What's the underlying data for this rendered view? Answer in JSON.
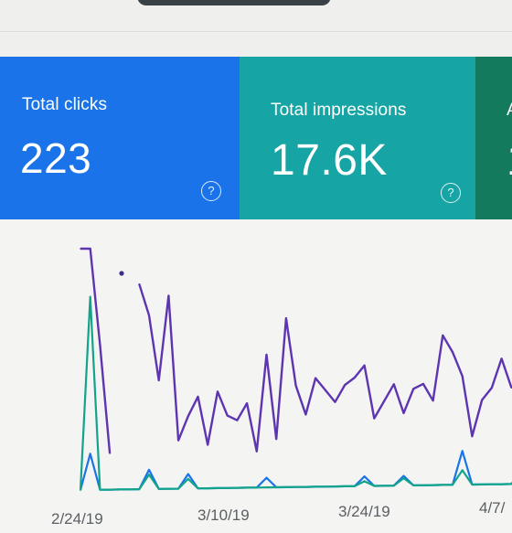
{
  "cards": [
    {
      "label": "Total clicks",
      "value": "223",
      "help_icon": "help-circle-icon",
      "color": "#1a73e8"
    },
    {
      "label": "Total impressions",
      "value": "17.6K",
      "help_icon": "help-circle-icon",
      "color": "#16a4a4"
    },
    {
      "label": "A",
      "value": "1",
      "color": "#147a5e"
    }
  ],
  "chart_data": {
    "type": "line",
    "x_tick_labels": [
      "2/24/19",
      "3/10/19",
      "3/24/19",
      "4/7/"
    ],
    "series": [
      {
        "color": "#5e35b1",
        "values": [
          100,
          100,
          60,
          15,
          null,
          null,
          85,
          72,
          45,
          80,
          20,
          30,
          38,
          18,
          40,
          30,
          28,
          35,
          15,
          55,
          20,
          70,
          42,
          30,
          45,
          40,
          35,
          42,
          45,
          50,
          28,
          35,
          42,
          30,
          40,
          42,
          35,
          62,
          55,
          45,
          20,
          35,
          40,
          52,
          40,
          42
        ]
      },
      {
        "color": "#1a73e8",
        "values": [
          0,
          15,
          0,
          0,
          0,
          0,
          0,
          8,
          0,
          0,
          0,
          6,
          0,
          0,
          0,
          0,
          0,
          0,
          0,
          4,
          0,
          0,
          0,
          0,
          0,
          0,
          0,
          0,
          0,
          4,
          0,
          0,
          0,
          4,
          0,
          0,
          0,
          0,
          0,
          14,
          0,
          0,
          0,
          0,
          0,
          4
        ]
      },
      {
        "color": "#12a48a",
        "values": [
          0,
          80,
          0,
          0,
          0,
          0,
          0,
          6,
          0,
          0,
          0,
          4,
          0,
          0,
          0,
          0,
          0,
          0,
          0,
          0,
          0,
          0,
          0,
          0,
          0,
          0,
          0,
          0,
          0,
          2,
          0,
          0,
          0,
          3,
          0,
          0,
          0,
          0,
          0,
          6,
          0,
          0,
          0,
          0,
          0,
          5
        ]
      }
    ],
    "grid": false
  }
}
